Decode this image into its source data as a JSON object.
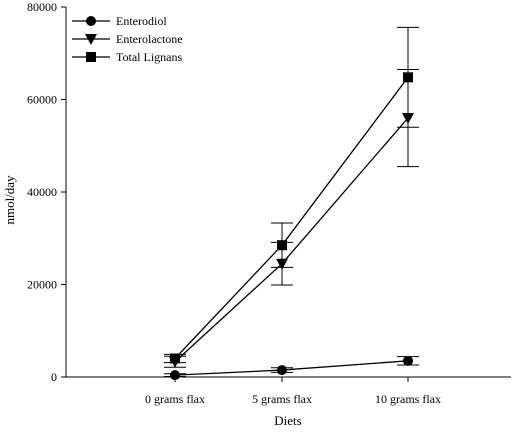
{
  "chart_data": {
    "type": "line",
    "title": "",
    "xlabel": "Diets",
    "ylabel": "nmol/day",
    "categories": [
      "0 grams flax",
      "5 grams flax",
      "10 grams flax"
    ],
    "ylim": [
      0,
      80000
    ],
    "yticks": [
      "0",
      "20000",
      "40000",
      "60000",
      "80000"
    ],
    "grid": false,
    "legend_position": "top-left",
    "series": [
      {
        "name": "Enterodiol",
        "marker": "circle",
        "values": [
          400,
          1500,
          3500
        ],
        "error": [
          300,
          500,
          900
        ]
      },
      {
        "name": "Enterolactone",
        "marker": "triangle-down",
        "values": [
          3300,
          24500,
          56000
        ],
        "error": [
          1200,
          4600,
          10500
        ]
      },
      {
        "name": "Total Lignans",
        "marker": "square",
        "values": [
          4000,
          28500,
          64800
        ],
        "error": [
          900,
          4800,
          10800
        ]
      }
    ],
    "colors": {
      "line": "#000000",
      "marker": "#000000"
    }
  }
}
